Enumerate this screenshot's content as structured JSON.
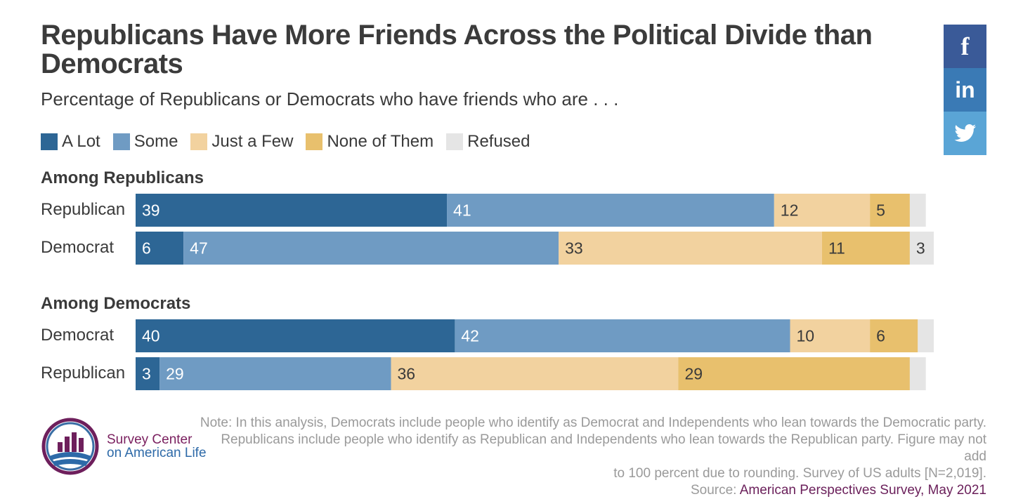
{
  "title": "Republicans Have More Friends Across the Political Divide than Democrats",
  "subtitle": "Percentage of Republicans or Democrats who have friends who are . . .",
  "legend": [
    {
      "label": "A Lot",
      "color": "#2d6695"
    },
    {
      "label": "Some",
      "color": "#6f9bc3"
    },
    {
      "label": "Just a Few",
      "color": "#f2d29f"
    },
    {
      "label": "None of Them",
      "color": "#e8c06d"
    },
    {
      "label": "Refused",
      "color": "#e5e5e5"
    }
  ],
  "chart_data": {
    "type": "bar",
    "orientation": "horizontal",
    "stacked": true,
    "xlim": [
      0,
      100
    ],
    "series_names": [
      "A Lot",
      "Some",
      "Just a Few",
      "None of Them",
      "Refused"
    ],
    "groups": [
      {
        "heading": "Among Republicans",
        "rows": [
          {
            "label": "Republican",
            "values": [
              39,
              41,
              12,
              5,
              2
            ],
            "labels": [
              "39",
              "41",
              "12",
              "5",
              ""
            ]
          },
          {
            "label": "Democrat",
            "values": [
              6,
              47,
              33,
              11,
              3
            ],
            "labels": [
              "6",
              "47",
              "33",
              "11",
              "3"
            ]
          }
        ]
      },
      {
        "heading": "Among Democrats",
        "rows": [
          {
            "label": "Democrat",
            "values": [
              40,
              42,
              10,
              6,
              2
            ],
            "labels": [
              "40",
              "42",
              "10",
              "6",
              ""
            ]
          },
          {
            "label": "Republican",
            "values": [
              3,
              29,
              36,
              29,
              2
            ],
            "labels": [
              "3",
              "29",
              "36",
              "29",
              ""
            ]
          }
        ]
      }
    ]
  },
  "social": {
    "facebook": {
      "glyph": "f",
      "color": "#3a5a98"
    },
    "linkedin": {
      "glyph": "in",
      "color": "#3a7ab5"
    },
    "twitter": {
      "glyph": "twitter-bird",
      "color": "#5aa5d6"
    }
  },
  "note": {
    "line1": "Note: In this analysis, Democrats include people who identify as Democrat and Independents who lean towards the Democratic party.",
    "line2": "Republicans include people who identify as Republican and Independents who lean towards the Republican party. Figure may not add",
    "line3": "to 100 percent due to rounding. Survey of US adults [N=2,019].",
    "source_prefix": "Source: ",
    "source_link": "American Perspectives Survey, May 2021"
  },
  "logo": {
    "line1": "Survey Center",
    "line2": "on American Life"
  }
}
